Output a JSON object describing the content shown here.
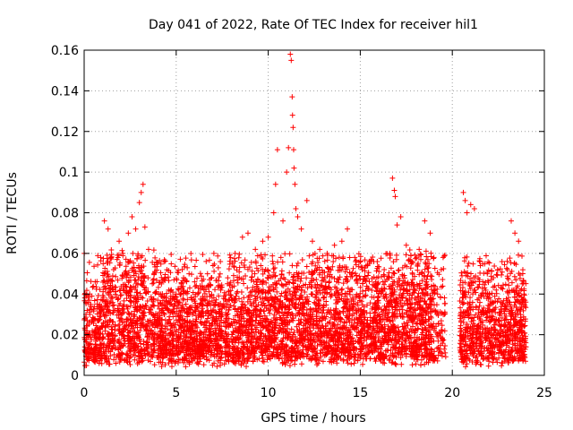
{
  "chart_data": {
    "type": "scatter",
    "title": "Day 041 of 2022, Rate Of TEC Index for receiver hil1",
    "xlabel": "GPS time / hours",
    "ylabel": "ROTI / TECUs",
    "xlim": [
      0,
      25
    ],
    "ylim": [
      0,
      0.16
    ],
    "xticks": [
      0,
      5,
      10,
      15,
      20,
      25
    ],
    "xtick_labels": [
      "0",
      "5",
      "10",
      "15",
      "20",
      "25"
    ],
    "yticks": [
      0,
      0.02,
      0.04,
      0.06,
      0.08,
      0.1,
      0.12,
      0.14,
      0.16
    ],
    "ytick_labels": [
      "0",
      "0.02",
      "0.04",
      "0.06",
      "0.08",
      "0.1",
      "0.12",
      "0.14",
      "0.16"
    ],
    "grid": true,
    "marker": "plus",
    "color": "#ff0000",
    "series": [
      {
        "name": "hil1 ROTI",
        "note": "dense band of points from 0 to 24 h, mostly 0.005-0.04 TECU/min, gap near 19.6-20.4 h",
        "points": [
          [
            0.1,
            0.03
          ],
          [
            0.3,
            0.04
          ],
          [
            0.6,
            0.046
          ],
          [
            0.9,
            0.058
          ],
          [
            1.1,
            0.076
          ],
          [
            1.3,
            0.072
          ],
          [
            1.6,
            0.052
          ],
          [
            1.9,
            0.066
          ],
          [
            2.1,
            0.06
          ],
          [
            2.4,
            0.07
          ],
          [
            2.6,
            0.078
          ],
          [
            2.8,
            0.072
          ],
          [
            3.0,
            0.085
          ],
          [
            3.2,
            0.094
          ],
          [
            3.1,
            0.09
          ],
          [
            3.3,
            0.073
          ],
          [
            3.5,
            0.062
          ],
          [
            3.8,
            0.05
          ],
          [
            4.2,
            0.045
          ],
          [
            4.6,
            0.042
          ],
          [
            5.0,
            0.04
          ],
          [
            5.4,
            0.048
          ],
          [
            5.7,
            0.05
          ],
          [
            6.0,
            0.046
          ],
          [
            6.3,
            0.044
          ],
          [
            6.7,
            0.05
          ],
          [
            7.0,
            0.054
          ],
          [
            7.4,
            0.056
          ],
          [
            7.8,
            0.048
          ],
          [
            8.2,
            0.06
          ],
          [
            8.6,
            0.068
          ],
          [
            8.9,
            0.07
          ],
          [
            9.3,
            0.062
          ],
          [
            9.7,
            0.066
          ],
          [
            10.0,
            0.068
          ],
          [
            10.3,
            0.08
          ],
          [
            10.4,
            0.094
          ],
          [
            10.5,
            0.111
          ],
          [
            10.8,
            0.076
          ],
          [
            11.0,
            0.1
          ],
          [
            11.1,
            0.112
          ],
          [
            11.2,
            0.158
          ],
          [
            11.25,
            0.155
          ],
          [
            11.3,
            0.137
          ],
          [
            11.32,
            0.128
          ],
          [
            11.35,
            0.122
          ],
          [
            11.38,
            0.111
          ],
          [
            11.4,
            0.102
          ],
          [
            11.45,
            0.094
          ],
          [
            11.5,
            0.082
          ],
          [
            11.6,
            0.078
          ],
          [
            11.8,
            0.072
          ],
          [
            12.1,
            0.086
          ],
          [
            12.4,
            0.066
          ],
          [
            12.8,
            0.062
          ],
          [
            13.2,
            0.06
          ],
          [
            13.6,
            0.064
          ],
          [
            14.0,
            0.066
          ],
          [
            14.3,
            0.072
          ],
          [
            14.7,
            0.058
          ],
          [
            15.1,
            0.052
          ],
          [
            15.5,
            0.056
          ],
          [
            15.9,
            0.048
          ],
          [
            16.3,
            0.052
          ],
          [
            16.6,
            0.06
          ],
          [
            16.75,
            0.097
          ],
          [
            16.85,
            0.091
          ],
          [
            16.9,
            0.088
          ],
          [
            17.0,
            0.074
          ],
          [
            17.2,
            0.078
          ],
          [
            17.5,
            0.064
          ],
          [
            17.8,
            0.056
          ],
          [
            18.2,
            0.062
          ],
          [
            18.5,
            0.076
          ],
          [
            18.8,
            0.07
          ],
          [
            19.0,
            0.058
          ],
          [
            19.2,
            0.04
          ],
          [
            19.4,
            0.052
          ],
          [
            19.5,
            0.058
          ],
          [
            20.6,
            0.09
          ],
          [
            20.7,
            0.086
          ],
          [
            20.8,
            0.08
          ],
          [
            21.0,
            0.084
          ],
          [
            21.2,
            0.082
          ],
          [
            21.5,
            0.056
          ],
          [
            21.9,
            0.05
          ],
          [
            22.3,
            0.044
          ],
          [
            22.7,
            0.056
          ],
          [
            23.0,
            0.052
          ],
          [
            23.2,
            0.076
          ],
          [
            23.4,
            0.07
          ],
          [
            23.6,
            0.066
          ],
          [
            23.9,
            0.04
          ]
        ]
      }
    ]
  }
}
